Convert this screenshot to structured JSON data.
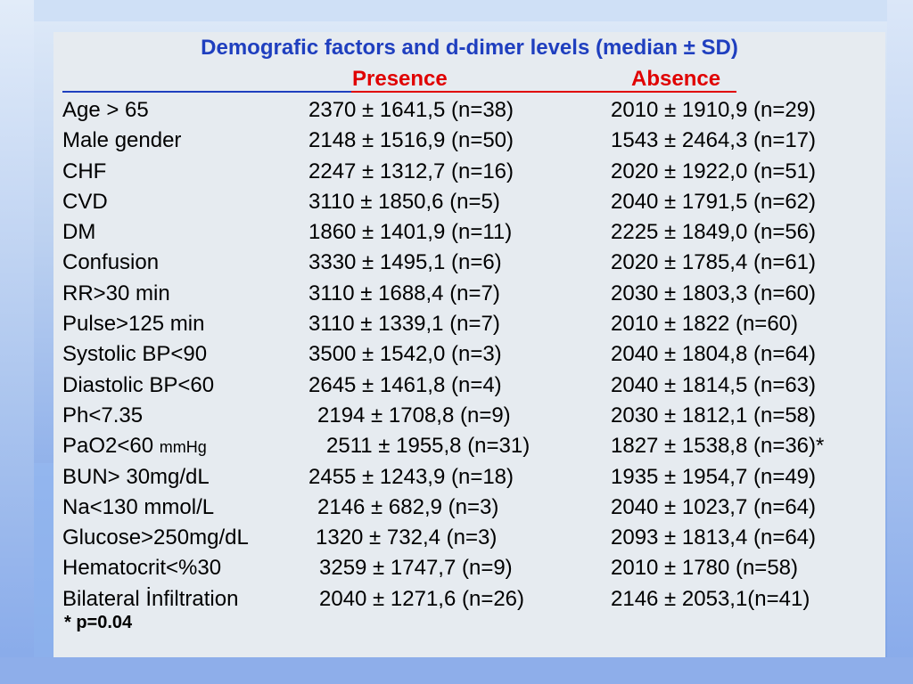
{
  "slide": {
    "title": "Demografic factors and d-dimer levels (median ± SD)",
    "header_presence": "Presence",
    "header_absence": "Absence",
    "footnote": "*  p=0.04",
    "colors": {
      "title": "#1f3fbf",
      "header": "#e00000",
      "panel": "#e6ebf0"
    }
  },
  "rows": [
    {
      "factor": "Age > 65",
      "presence": "2370 ± 1641,5 (n=38)",
      "absence": "2010 ± 1910,9 (n=29)"
    },
    {
      "factor": "Male gender",
      "presence": "2148 ± 1516,9 (n=50)",
      "absence": "1543 ± 2464,3 (n=17)"
    },
    {
      "factor": "CHF",
      "presence": "2247 ± 1312,7 (n=16)",
      "absence": "2020 ± 1922,0 (n=51)"
    },
    {
      "factor": "CVD",
      "presence": "3110 ± 1850,6 (n=5)",
      "absence": "2040 ± 1791,5 (n=62)"
    },
    {
      "factor": "DM",
      "presence": "1860 ± 1401,9 (n=11)",
      "absence": "2225 ± 1849,0 (n=56)"
    },
    {
      "factor": "Confusion",
      "presence": "3330 ± 1495,1 (n=6)",
      "absence": "2020 ± 1785,4 (n=61)"
    },
    {
      "factor": "RR>30 min",
      "presence": "3110 ± 1688,4 (n=7)",
      "absence": "2030 ± 1803,3 (n=60)"
    },
    {
      "factor": "Pulse>125 min",
      "presence": "3110 ± 1339,1 (n=7)",
      "absence": "2010 ± 1822 (n=60)"
    },
    {
      "factor": "Systolic BP<90",
      "presence": "3500 ± 1542,0 (n=3)",
      "absence": "2040 ± 1804,8 (n=64)"
    },
    {
      "factor": "Diastolic BP<60",
      "presence": "2645 ± 1461,8 (n=4)",
      "absence": "2040 ± 1814,5 (n=63)"
    },
    {
      "factor": "Ph<7.35",
      "presence": "2194 ± 1708,8 (n=9)",
      "absence": "2030 ± 1812,1 (n=58)"
    },
    {
      "factor": "PaO2<60",
      "factor_unit": "mmHg",
      "presence": "2511 ± 1955,8 (n=31)",
      "absence": "1827 ± 1538,8 (n=36)*"
    },
    {
      "factor": "BUN> 30mg/dL",
      "presence": "2455 ± 1243,9 (n=18)",
      "absence": "1935 ± 1954,7 (n=49)"
    },
    {
      "factor": "Na<130  mmol/L",
      "presence": "2146 ± 682,9 (n=3)",
      "absence": "2040 ± 1023,7 (n=64)"
    },
    {
      "factor": "Glucose>250mg/dL",
      "presence": "1320 ± 732,4 (n=3)",
      "absence": "2093 ± 1813,4 (n=64)"
    },
    {
      "factor": "Hematocrit<%30",
      "presence": "3259 ± 1747,7 (n=9)",
      "absence": "2010 ± 1780 (n=58)"
    },
    {
      "factor": "Bilateral İnfiltration",
      "presence": "2040 ± 1271,6 (n=26)",
      "absence": "2146 ± 2053,1(n=41)"
    }
  ]
}
